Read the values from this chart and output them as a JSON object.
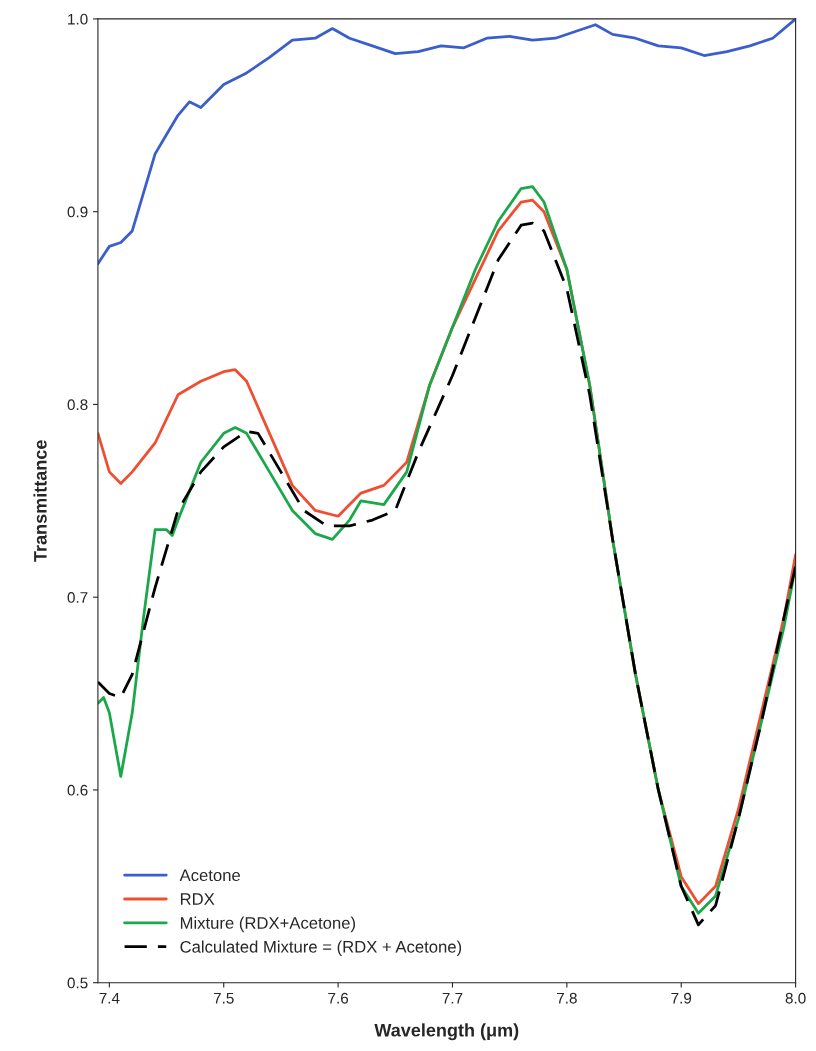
{
  "chart_data": {
    "type": "line",
    "xlabel": "Wavelength (μm)",
    "ylabel": "Transmittance",
    "xlim": [
      7.39,
      8.0
    ],
    "ylim": [
      0.5,
      1.0
    ],
    "xticks": [
      7.4,
      7.5,
      7.6,
      7.7,
      7.8,
      7.9,
      {
        "value": 8.0,
        "label": "8.0"
      }
    ],
    "yticks": [
      0.5,
      0.6,
      0.7,
      0.8,
      0.9,
      {
        "value": 1.0,
        "label": "1.0"
      }
    ],
    "grid": false,
    "legend": "bottom left",
    "series": [
      {
        "name": "Acetone",
        "color": "#3a5fcd",
        "line_style": "solid",
        "x": [
          7.39,
          7.4,
          7.41,
          7.42,
          7.43,
          7.44,
          7.45,
          7.46,
          7.47,
          7.48,
          7.49,
          7.5,
          7.52,
          7.54,
          7.56,
          7.58,
          7.595,
          7.61,
          7.63,
          7.65,
          7.67,
          7.69,
          7.71,
          7.73,
          7.75,
          7.77,
          7.79,
          7.81,
          7.825,
          7.84,
          7.86,
          7.88,
          7.9,
          7.92,
          7.94,
          7.96,
          7.98,
          8.0
        ],
        "values": [
          0.873,
          0.882,
          0.884,
          0.89,
          0.91,
          0.93,
          0.94,
          0.95,
          0.957,
          0.954,
          0.96,
          0.966,
          0.972,
          0.98,
          0.989,
          0.99,
          0.995,
          0.99,
          0.986,
          0.982,
          0.983,
          0.986,
          0.985,
          0.99,
          0.991,
          0.989,
          0.99,
          0.994,
          0.997,
          0.992,
          0.99,
          0.986,
          0.985,
          0.981,
          0.983,
          0.986,
          0.99,
          1.0
        ]
      },
      {
        "name": "RDX",
        "color": "#f04e30",
        "line_style": "solid",
        "x": [
          7.39,
          7.4,
          7.41,
          7.42,
          7.44,
          7.46,
          7.48,
          7.5,
          7.51,
          7.52,
          7.54,
          7.56,
          7.58,
          7.6,
          7.62,
          7.64,
          7.66,
          7.68,
          7.7,
          7.72,
          7.74,
          7.76,
          7.77,
          7.78,
          7.8,
          7.82,
          7.84,
          7.86,
          7.88,
          7.9,
          7.915,
          7.93,
          7.95,
          7.97,
          7.99,
          8.0
        ],
        "values": [
          0.785,
          0.765,
          0.759,
          0.765,
          0.78,
          0.805,
          0.812,
          0.817,
          0.818,
          0.812,
          0.785,
          0.758,
          0.745,
          0.742,
          0.754,
          0.758,
          0.77,
          0.81,
          0.84,
          0.865,
          0.89,
          0.905,
          0.906,
          0.9,
          0.87,
          0.81,
          0.73,
          0.66,
          0.6,
          0.555,
          0.541,
          0.55,
          0.59,
          0.64,
          0.69,
          0.722
        ]
      },
      {
        "name": "Mixture (RDX+Acetone)",
        "color": "#1aa84a",
        "line_style": "solid",
        "x": [
          7.39,
          7.395,
          7.4,
          7.41,
          7.42,
          7.43,
          7.44,
          7.45,
          7.455,
          7.46,
          7.48,
          7.5,
          7.51,
          7.52,
          7.54,
          7.56,
          7.58,
          7.595,
          7.61,
          7.62,
          7.64,
          7.66,
          7.68,
          7.7,
          7.72,
          7.74,
          7.76,
          7.77,
          7.78,
          7.8,
          7.82,
          7.84,
          7.86,
          7.88,
          7.9,
          7.915,
          7.93,
          7.95,
          7.97,
          7.99,
          8.0
        ],
        "values": [
          0.645,
          0.648,
          0.64,
          0.607,
          0.64,
          0.69,
          0.735,
          0.735,
          0.732,
          0.74,
          0.77,
          0.785,
          0.788,
          0.785,
          0.765,
          0.745,
          0.733,
          0.73,
          0.74,
          0.75,
          0.748,
          0.765,
          0.81,
          0.84,
          0.87,
          0.895,
          0.912,
          0.913,
          0.905,
          0.87,
          0.81,
          0.73,
          0.66,
          0.6,
          0.55,
          0.536,
          0.545,
          0.585,
          0.635,
          0.685,
          0.716
        ]
      },
      {
        "name": "Calculated Mixture = (RDX + Acetone)",
        "color": "#000000",
        "line_style": "dashed",
        "x": [
          7.39,
          7.4,
          7.41,
          7.42,
          7.44,
          7.46,
          7.48,
          7.5,
          7.52,
          7.53,
          7.55,
          7.57,
          7.59,
          7.61,
          7.63,
          7.65,
          7.67,
          7.7,
          7.72,
          7.74,
          7.76,
          7.77,
          7.78,
          7.8,
          7.82,
          7.84,
          7.86,
          7.88,
          7.9,
          7.915,
          7.93,
          7.95,
          7.97,
          7.99,
          8.0
        ],
        "values": [
          0.656,
          0.65,
          0.648,
          0.66,
          0.705,
          0.745,
          0.765,
          0.778,
          0.786,
          0.785,
          0.765,
          0.745,
          0.737,
          0.737,
          0.74,
          0.745,
          0.775,
          0.815,
          0.845,
          0.875,
          0.893,
          0.894,
          0.89,
          0.86,
          0.805,
          0.73,
          0.66,
          0.6,
          0.55,
          0.53,
          0.54,
          0.585,
          0.635,
          0.69,
          0.716
        ]
      }
    ]
  }
}
